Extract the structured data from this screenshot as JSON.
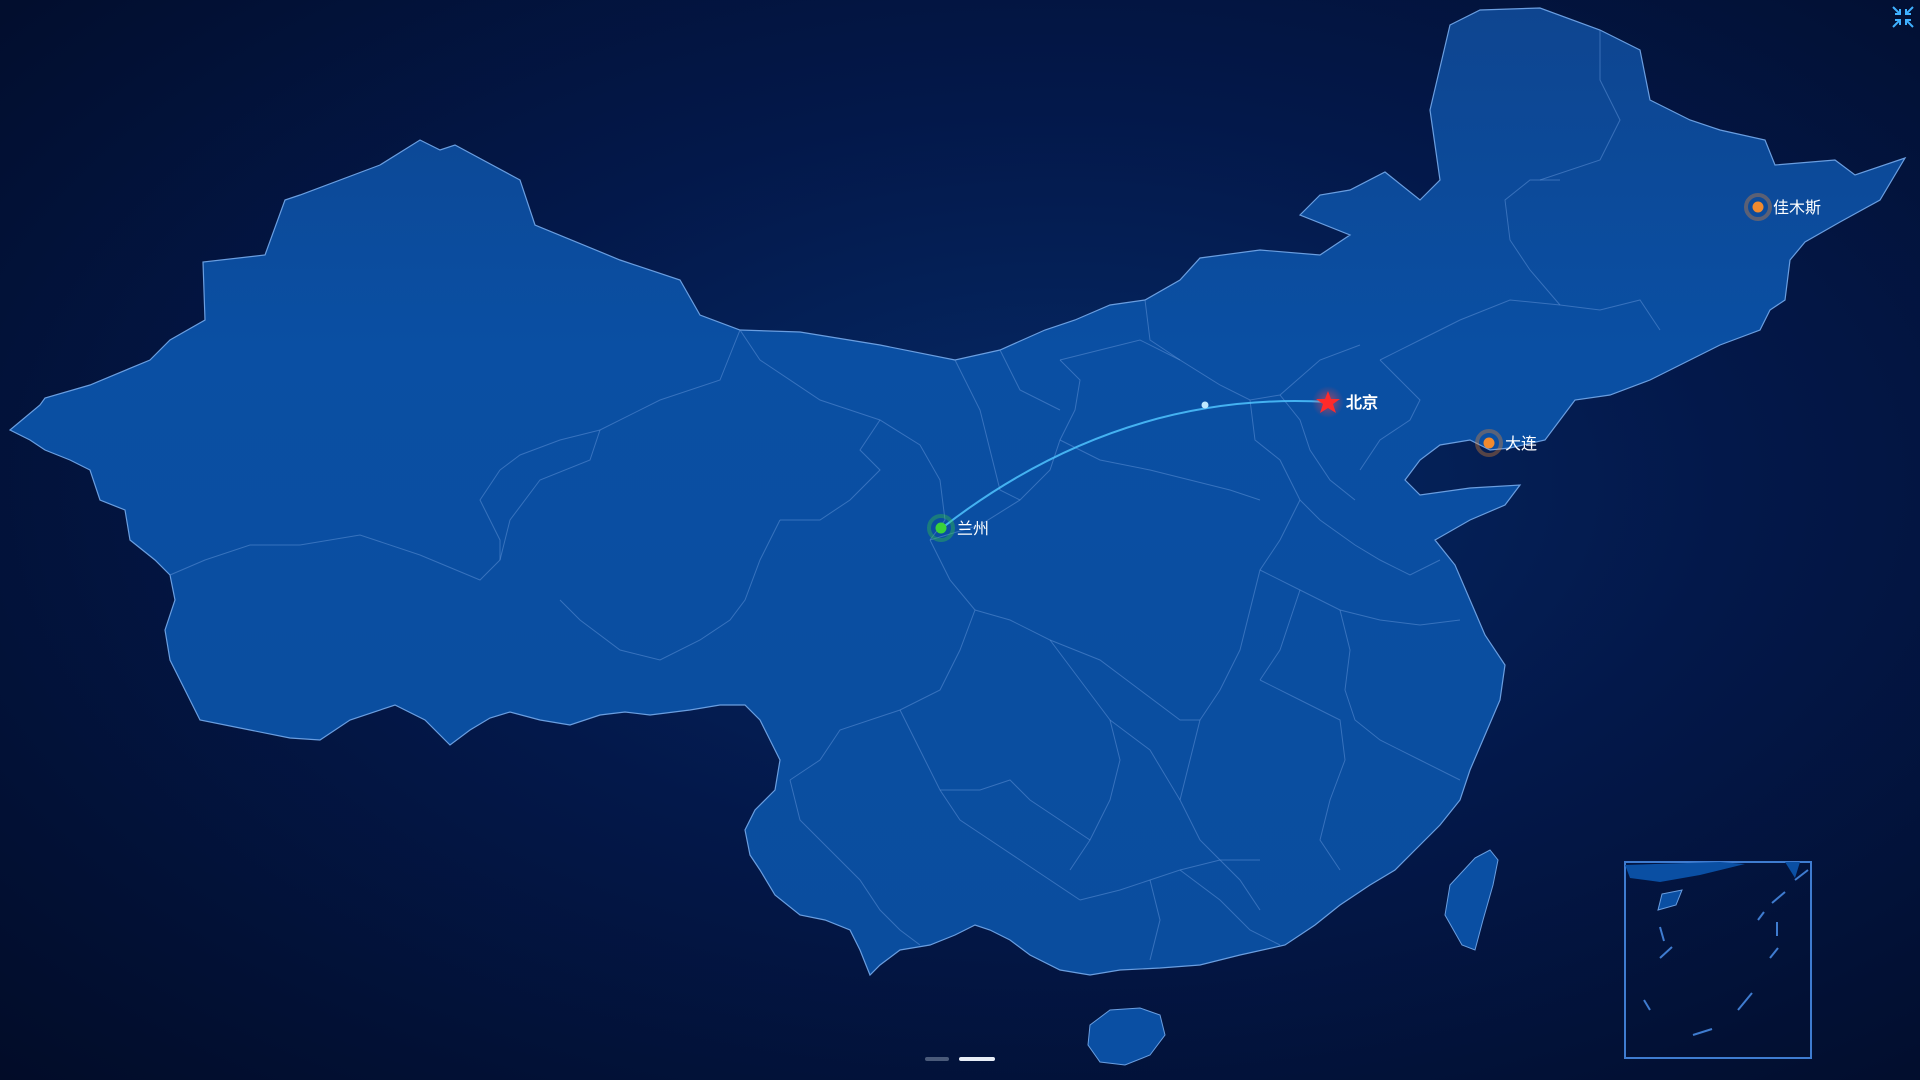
{
  "map": {
    "land_color": "#0a4fa3",
    "border_color": "#5c8fd6",
    "background_color": "#020f2e"
  },
  "cities": [
    {
      "name": "北京",
      "type": "origin",
      "marker": "star-icon",
      "color": "#ff2a2a"
    },
    {
      "name": "兰州",
      "type": "destination",
      "marker": "green-dot",
      "color": "#3ad13a"
    },
    {
      "name": "大连",
      "type": "point",
      "marker": "orange-dot",
      "color": "#f08a2e"
    },
    {
      "name": "佳木斯",
      "type": "point",
      "marker": "orange-dot",
      "color": "#f08a2e"
    }
  ],
  "route": {
    "from": "北京",
    "to": "兰州",
    "color": "#4fc3ff"
  },
  "controls": {
    "fullscreen_icon": "collapse-arrows-icon",
    "pager_pages": 2,
    "pager_active": 2
  }
}
